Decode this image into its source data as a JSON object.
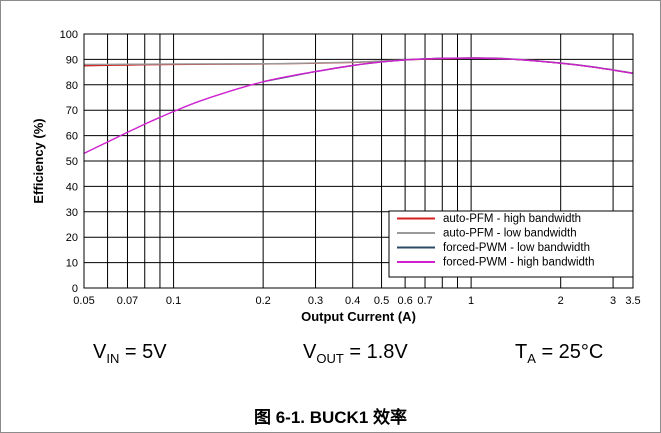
{
  "chart_data": {
    "type": "line",
    "xlabel": "Output Current (A)",
    "ylabel": "Efficiency (%)",
    "xscale": "log",
    "xlim": [
      0.05,
      3.5
    ],
    "ylim": [
      0,
      100
    ],
    "x_ticks": [
      0.05,
      0.07,
      0.1,
      0.2,
      0.3,
      0.4,
      0.5,
      0.6,
      0.7,
      1,
      2,
      3,
      3.5
    ],
    "x_tick_labels": [
      "0.05",
      "0.07",
      "0.1",
      "0.2",
      "0.3",
      "0.4",
      "0.5",
      "0.6",
      "0.7",
      "1",
      "2",
      "3",
      "3.5"
    ],
    "x_gridlines": [
      0.05,
      0.06,
      0.07,
      0.08,
      0.09,
      0.1,
      0.2,
      0.3,
      0.4,
      0.5,
      0.6,
      0.7,
      0.8,
      0.9,
      1,
      2,
      3,
      3.5
    ],
    "y_ticks": [
      0,
      10,
      20,
      30,
      40,
      50,
      60,
      70,
      80,
      90,
      100
    ],
    "y_tick_labels": [
      "0",
      "10",
      "20",
      "30",
      "40",
      "50",
      "60",
      "70",
      "80",
      "90",
      "100"
    ],
    "grid": true,
    "legend_position": "bottom-right",
    "series": [
      {
        "name": "auto-PFM - high bandwidth",
        "color": "#d42020",
        "x": [
          0.05,
          0.07,
          0.1,
          0.2,
          0.3,
          0.4,
          0.5,
          0.6,
          0.7,
          0.8,
          1,
          1.2,
          1.5,
          2,
          2.5,
          3,
          3.5
        ],
        "y": [
          87.5,
          87.8,
          88.0,
          88.2,
          88.5,
          88.8,
          89.3,
          89.8,
          90.1,
          90.3,
          90.5,
          90.4,
          89.8,
          88.5,
          87.2,
          85.8,
          84.5
        ]
      },
      {
        "name": "auto-PFM - low bandwidth",
        "color": "#9a9a9a",
        "x": [
          0.05,
          0.07,
          0.1,
          0.2,
          0.3,
          0.4,
          0.5,
          0.6,
          0.7,
          0.8,
          1,
          1.2,
          1.5,
          2,
          2.5,
          3,
          3.5
        ],
        "y": [
          88.0,
          88.1,
          88.2,
          88.3,
          88.6,
          88.9,
          89.4,
          89.9,
          90.2,
          90.4,
          90.6,
          90.5,
          89.9,
          88.6,
          87.3,
          85.9,
          84.6
        ]
      },
      {
        "name": "forced-PWM - low bandwidth",
        "color": "#2d4a63",
        "x": [
          0.2,
          0.3,
          0.4,
          0.5,
          0.6,
          0.7,
          0.8,
          1,
          1.2,
          1.5,
          2,
          2.5,
          3,
          3.5
        ],
        "y": [
          81.2,
          85.2,
          87.6,
          89.0,
          89.8,
          90.2,
          90.4,
          90.5,
          90.4,
          89.8,
          88.5,
          87.2,
          85.8,
          84.5
        ]
      },
      {
        "name": "forced-PWM - high bandwidth",
        "color": "#d020d0",
        "x": [
          0.05,
          0.06,
          0.07,
          0.08,
          0.09,
          0.1,
          0.12,
          0.15,
          0.2,
          0.25,
          0.3,
          0.4,
          0.5,
          0.6,
          0.7,
          0.8,
          1,
          1.2,
          1.5,
          2,
          2.5,
          3,
          3.5
        ],
        "y": [
          53.0,
          57.5,
          61.3,
          64.5,
          67.2,
          69.5,
          73.2,
          77.0,
          81.2,
          83.6,
          85.2,
          87.6,
          89.0,
          89.8,
          90.2,
          90.4,
          90.5,
          90.4,
          89.8,
          88.5,
          87.2,
          85.8,
          84.5
        ]
      }
    ]
  },
  "conditions": {
    "vin_main": "V",
    "vin_sub": "IN",
    "vin_value": " = 5V",
    "vout_main": "V",
    "vout_sub": "OUT",
    "vout_value": " = 1.8V",
    "ta_main": "T",
    "ta_sub": "A",
    "ta_value": " = 25°C"
  },
  "caption": "图 6-1. BUCK1 效率"
}
